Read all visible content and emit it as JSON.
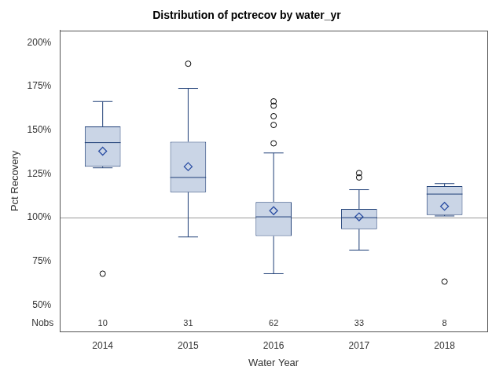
{
  "chart_data": {
    "type": "boxplot",
    "title": "Distribution of pctrecov by water_yr",
    "x_label": "Water Year",
    "y_label": "Pct Recovery",
    "categories": [
      "2014",
      "2015",
      "2016",
      "2017",
      "2018"
    ],
    "whisker_low": [
      128.5,
      89,
      68,
      81.5,
      101
    ],
    "q1": [
      129.2,
      114.6,
      89.5,
      93.5,
      101.5
    ],
    "median": [
      142.9,
      123,
      100.5,
      100,
      113.5
    ],
    "q3": [
      152.2,
      143.4,
      109,
      105,
      118
    ],
    "whisker_high": [
      166.4,
      173.9,
      137,
      116,
      119.5
    ],
    "mean": [
      138,
      129.2,
      104,
      100.5,
      106.5
    ],
    "outliers": [
      [
        68
      ],
      [
        188
      ],
      [
        166.5,
        164,
        158,
        153,
        142.5
      ],
      [
        125.5,
        123
      ],
      [
        63.5
      ]
    ],
    "nobs_label": "Nobs",
    "nobs": [
      10,
      31,
      62,
      33,
      8
    ],
    "reference_line": 100,
    "ylim": [
      35,
      207
    ],
    "yticks": [
      {
        "value": 50,
        "label": "50%"
      },
      {
        "value": 75,
        "label": "75%"
      },
      {
        "value": 100,
        "label": "100%"
      },
      {
        "value": 125,
        "label": "125%"
      },
      {
        "value": 150,
        "label": "150%"
      },
      {
        "value": 175,
        "label": "175%"
      },
      {
        "value": 200,
        "label": "200%"
      }
    ],
    "grid": false,
    "color": "#cad5e6",
    "marker": "diamond"
  }
}
